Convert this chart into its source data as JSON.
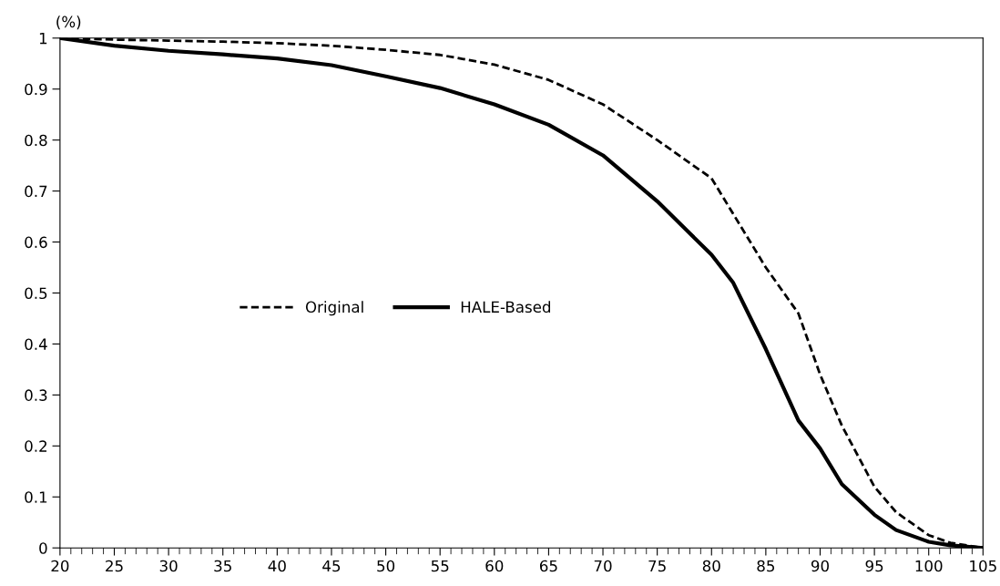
{
  "chart_data": {
    "type": "line",
    "ylabel": "(%)",
    "x": [
      20,
      25,
      30,
      35,
      40,
      45,
      50,
      55,
      60,
      65,
      70,
      75,
      80,
      82,
      85,
      88,
      90,
      92,
      95,
      97,
      100,
      102,
      105
    ],
    "series": [
      {
        "name": "Original",
        "color": "#000000",
        "line_style": "dashed",
        "values": [
          1,
          0.997,
          0.995,
          0.993,
          0.99,
          0.985,
          0.977,
          0.967,
          0.948,
          0.918,
          0.87,
          0.8,
          0.725,
          0.655,
          0.55,
          0.46,
          0.34,
          0.24,
          0.12,
          0.07,
          0.025,
          0.01,
          0
        ]
      },
      {
        "name": "HALE-Based",
        "color": "#000000",
        "line_style": "solid",
        "values": [
          1,
          0.985,
          0.975,
          0.968,
          0.96,
          0.947,
          0.925,
          0.902,
          0.87,
          0.83,
          0.77,
          0.68,
          0.575,
          0.52,
          0.39,
          0.25,
          0.195,
          0.125,
          0.065,
          0.035,
          0.012,
          0.005,
          0
        ]
      }
    ],
    "xlim": [
      20,
      105
    ],
    "xticks": [
      20,
      25,
      30,
      35,
      40,
      45,
      50,
      55,
      60,
      65,
      70,
      75,
      80,
      85,
      90,
      95,
      100,
      105
    ],
    "ylim": [
      0,
      1
    ],
    "yticks": [
      0,
      0.1,
      0.2,
      0.3,
      0.4,
      0.5,
      0.6,
      0.7,
      0.8,
      0.9,
      1
    ],
    "legend": "left",
    "grid": false
  }
}
